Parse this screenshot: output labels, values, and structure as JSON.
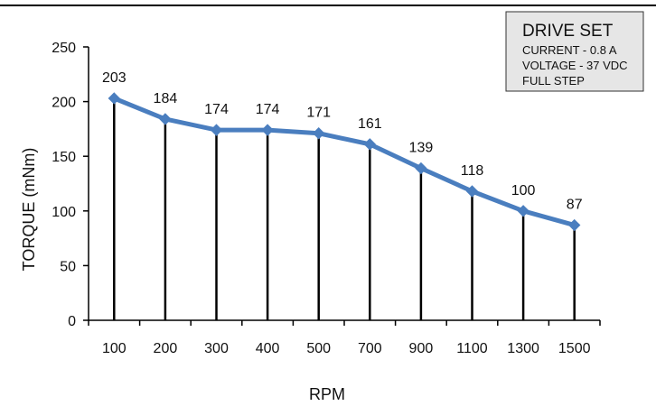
{
  "chart_data": {
    "type": "line",
    "categories": [
      "100",
      "200",
      "300",
      "400",
      "500",
      "700",
      "900",
      "1100",
      "1300",
      "1500"
    ],
    "series": [
      {
        "values": [
          203,
          184,
          174,
          174,
          171,
          161,
          139,
          118,
          100,
          87
        ]
      }
    ],
    "xlabel": "RPM",
    "ylabel": "TORQUE (mNm)",
    "ylim": [
      0,
      250
    ],
    "yticks": [
      "0",
      "50",
      "100",
      "150",
      "200",
      "250"
    ],
    "grid": false,
    "drop_lines": true,
    "legend": "top-right",
    "colors": {
      "line": "#4a7ebf",
      "droplines": "#000000",
      "axis": "#000000",
      "legend_bg": "#e6e6e6"
    }
  },
  "annotation_box": {
    "title": "DRIVE SET",
    "lines": [
      "CURRENT - 0.8 A",
      "VOLTAGE - 37 VDC",
      "FULL STEP"
    ]
  }
}
